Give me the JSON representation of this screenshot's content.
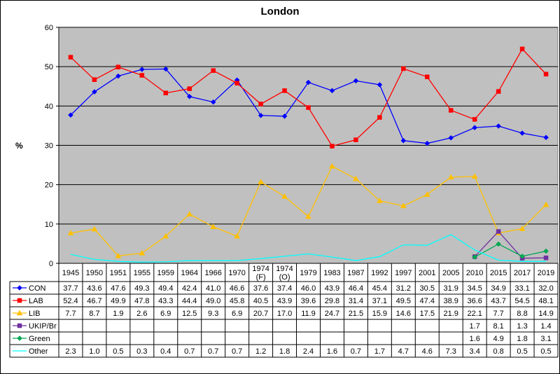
{
  "chart_data": {
    "type": "line",
    "title": "London",
    "ylabel": "%",
    "xlabel": "",
    "ylim": [
      0,
      60
    ],
    "yticks": [
      0,
      10,
      20,
      30,
      40,
      50,
      60
    ],
    "grid": true,
    "legend": "table-below",
    "categories": [
      "1945",
      "1950",
      "1951",
      "1955",
      "1959",
      "1964",
      "1966",
      "1970",
      "1974 (F)",
      "1974 (O)",
      "1979",
      "1983",
      "1987",
      "1992",
      "1997",
      "2001",
      "2005",
      "2010",
      "2015",
      "2017",
      "2019"
    ],
    "series": [
      {
        "name": "CON",
        "color": "#0000ff",
        "marker": "diamond",
        "values": [
          37.7,
          43.6,
          47.6,
          49.3,
          49.4,
          42.4,
          41.0,
          46.6,
          37.6,
          37.4,
          46.0,
          43.9,
          46.4,
          45.4,
          31.2,
          30.5,
          31.9,
          34.5,
          34.9,
          33.1,
          32.0
        ]
      },
      {
        "name": "LAB",
        "color": "#ff0000",
        "marker": "square",
        "values": [
          52.4,
          46.7,
          49.9,
          47.8,
          43.3,
          44.4,
          49.0,
          45.8,
          40.5,
          43.9,
          39.6,
          29.8,
          31.4,
          37.1,
          49.5,
          47.4,
          38.9,
          36.6,
          43.7,
          54.5,
          48.1
        ]
      },
      {
        "name": "LIB",
        "color": "#ffc000",
        "marker": "triangle",
        "values": [
          7.7,
          8.7,
          1.9,
          2.6,
          6.9,
          12.5,
          9.3,
          6.9,
          20.7,
          17.0,
          11.9,
          24.7,
          21.5,
          15.9,
          14.6,
          17.5,
          21.9,
          22.1,
          7.7,
          8.8,
          14.9
        ]
      },
      {
        "name": "UKIP/Br",
        "color": "#7030a0",
        "marker": "square",
        "values": [
          null,
          null,
          null,
          null,
          null,
          null,
          null,
          null,
          null,
          null,
          null,
          null,
          null,
          null,
          null,
          null,
          null,
          1.7,
          8.1,
          1.3,
          1.4
        ]
      },
      {
        "name": "Green",
        "color": "#00a651",
        "marker": "diamond",
        "values": [
          null,
          null,
          null,
          null,
          null,
          null,
          null,
          null,
          null,
          null,
          null,
          null,
          null,
          null,
          null,
          null,
          null,
          1.6,
          4.9,
          1.8,
          3.1
        ]
      },
      {
        "name": "Other",
        "color": "#00ffff",
        "marker": "none",
        "values": [
          2.3,
          1.0,
          0.5,
          0.3,
          0.4,
          0.7,
          0.7,
          0.7,
          1.2,
          1.8,
          2.4,
          1.6,
          0.7,
          1.7,
          4.7,
          4.6,
          7.3,
          3.4,
          0.8,
          0.5,
          0.5
        ]
      }
    ]
  }
}
